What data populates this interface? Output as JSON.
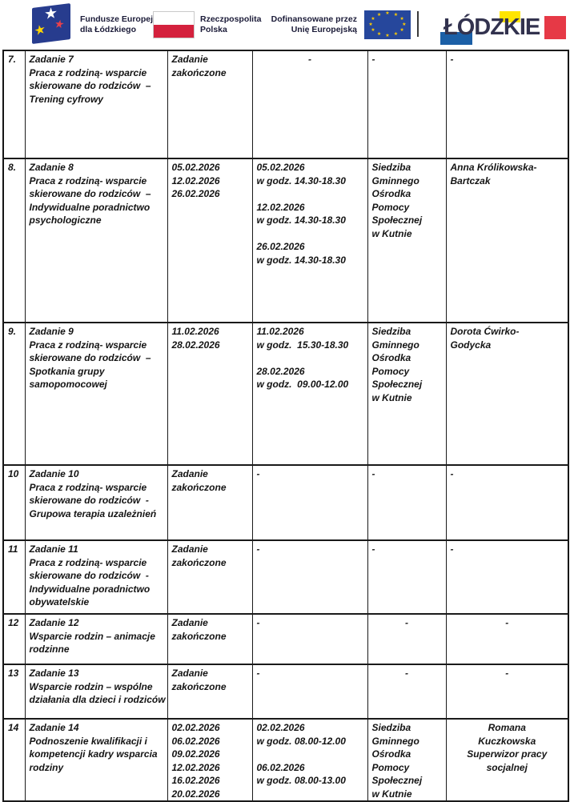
{
  "header": {
    "funds": {
      "line1": "Fundusze Europejskie",
      "line2": "dla Łódzkiego"
    },
    "poland": {
      "line1": "Rzeczpospolita",
      "line2": "Polska"
    },
    "eu": {
      "line1": "Dofinansowane przez",
      "line2": "Unię Europejską"
    },
    "lodzkie": "ŁÓDZKIE",
    "star_char": "★"
  },
  "colors": {
    "funds_flag_navy": "#273c8e",
    "funds_star_red": "#e8414b",
    "funds_star_yellow": "#ffd500",
    "poland_red": "#d4213d",
    "eu_flag_blue": "#26479c",
    "eu_star_yellow": "#ffcc00",
    "lodzkie_blue": "#1b5fa6",
    "lodzkie_yellow": "#ffe500",
    "lodzkie_red": "#e63946",
    "table_border": "#1a1a1a",
    "text": "#141414"
  },
  "table": {
    "rows": [
      {
        "num": "7.",
        "task": [
          "Zadanie 7",
          "Praca z rodziną- wsparcie",
          "skierowane do rodziców  –",
          "Trening cyfrowy"
        ],
        "dates": [
          "Zadanie",
          "zakończone"
        ],
        "times": [
          "-"
        ],
        "place": [
          "-"
        ],
        "person": [
          "-"
        ],
        "align": {
          "times": "center",
          "place": "left",
          "person": "left"
        }
      },
      {
        "num": "8.",
        "task": [
          "Zadanie 8",
          "Praca z rodziną- wsparcie",
          "skierowane do rodziców  –",
          "Indywidualne poradnictwo",
          "psychologiczne"
        ],
        "dates": [
          "05.02.2026",
          "12.02.2026",
          "26.02.2026"
        ],
        "times": [
          "05.02.2026",
          "w godz. 14.30-18.30",
          "",
          "12.02.2026",
          "w godz. 14.30-18.30",
          "",
          "26.02.2026",
          "w godz. 14.30-18.30"
        ],
        "place": [
          "Siedziba",
          "Gminnego",
          "Ośrodka",
          "Pomocy",
          "Społecznej",
          "w Kutnie"
        ],
        "person": [
          "Anna Królikowska-",
          "Bartczak"
        ],
        "align": {
          "times": "left",
          "place": "left",
          "person": "left"
        }
      },
      {
        "num": "9.",
        "task": [
          "Zadanie 9",
          "Praca z rodziną- wsparcie",
          "skierowane do rodziców  –",
          "Spotkania grupy",
          "samopomocowej"
        ],
        "dates": [
          "11.02.2026",
          "28.02.2026"
        ],
        "times": [
          "11.02.2026",
          "w godz.  15.30-18.30",
          "",
          "28.02.2026",
          "w godz.  09.00-12.00"
        ],
        "place": [
          "Siedziba",
          "Gminnego",
          "Ośrodka",
          "Pomocy",
          "Społecznej",
          "w Kutnie"
        ],
        "person": [
          "Dorota Ćwirko-",
          "Godycka"
        ],
        "align": {
          "times": "left",
          "place": "left",
          "person": "left"
        }
      },
      {
        "num": "10",
        "task": [
          "Zadanie 10",
          "Praca z rodziną- wsparcie",
          "skierowane do rodziców  -",
          "Grupowa terapia uzależnień"
        ],
        "dates": [
          "Zadanie",
          "zakończone"
        ],
        "times": [
          "-"
        ],
        "place": [
          "-"
        ],
        "person": [
          "-"
        ],
        "align": {
          "times": "left",
          "place": "left",
          "person": "left"
        }
      },
      {
        "num": "11",
        "task": [
          "Zadanie 11",
          "Praca z rodziną- wsparcie",
          "skierowane do rodziców  -",
          "Indywidualne poradnictwo",
          "obywatelskie"
        ],
        "dates": [
          "Zadanie",
          "zakończone"
        ],
        "times": [
          "-"
        ],
        "place": [
          "-"
        ],
        "person": [
          "-"
        ],
        "align": {
          "times": "left",
          "place": "left",
          "person": "left"
        }
      },
      {
        "num": "12",
        "task": [
          "Zadanie 12",
          "Wsparcie rodzin – animacje",
          "rodzinne"
        ],
        "dates": [
          "Zadanie",
          "zakończone"
        ],
        "times": [
          "-"
        ],
        "place": [
          "-"
        ],
        "person": [
          "-"
        ],
        "align": {
          "times": "left",
          "place": "center",
          "person": "center"
        }
      },
      {
        "num": "13",
        "task": [
          "Zadanie 13",
          "Wsparcie rodzin – wspólne",
          "działania dla dzieci i rodziców"
        ],
        "dates": [
          "Zadanie",
          "zakończone"
        ],
        "times": [
          "-"
        ],
        "place": [
          "-"
        ],
        "person": [
          "-"
        ],
        "align": {
          "times": "left",
          "place": "center",
          "person": "center"
        }
      },
      {
        "num": "14",
        "task": [
          "Zadanie 14",
          "Podnoszenie kwalifikacji i",
          "kompetencji kadry wsparcia",
          "rodziny"
        ],
        "dates": [
          "02.02.2026",
          "06.02.2026",
          "09.02.2026",
          "12.02.2026",
          "16.02.2026",
          "20.02.2026"
        ],
        "times": [
          "02.02.2026",
          "w godz. 08.00-12.00",
          "",
          "06.02.2026",
          "w godz. 08.00-13.00"
        ],
        "place": [
          "Siedziba",
          "Gminnego",
          "Ośrodka",
          "Pomocy",
          "Społecznej",
          "w Kutnie"
        ],
        "person": [
          "Romana",
          "Kuczkowska",
          "Superwizor pracy",
          "socjalnej"
        ],
        "align": {
          "times": "left",
          "place": "left",
          "person": "center"
        }
      }
    ]
  }
}
